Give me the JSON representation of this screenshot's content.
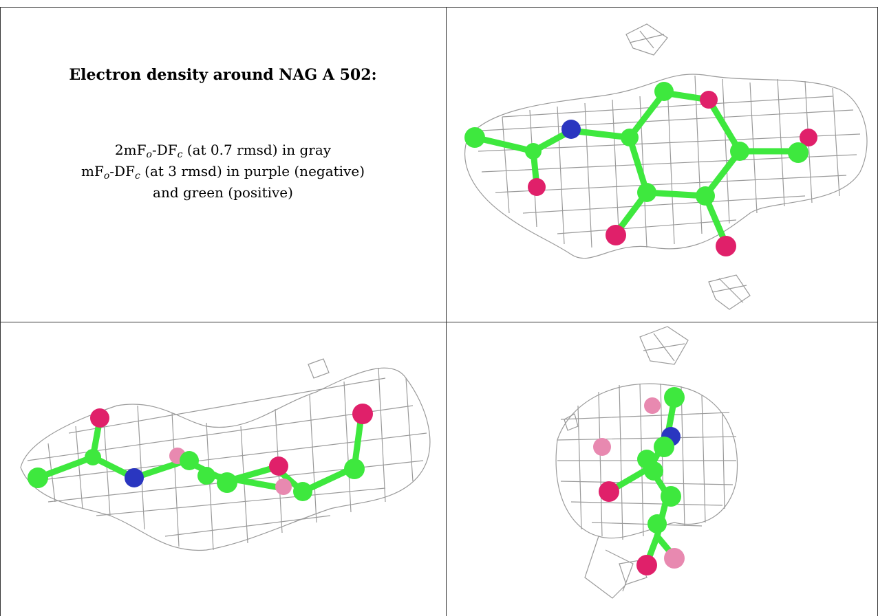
{
  "caption": {
    "title": "Electron density around NAG A 502:",
    "line1": {
      "prefix": "2mF",
      "sub_o": "o",
      "mid": "-DF",
      "sub_c": "c",
      "suffix": " (at 0.7 rmsd) in gray"
    },
    "line2": {
      "prefix": "mF",
      "sub_o": "o",
      "mid": "-DF",
      "sub_c": "c",
      "suffix": " (at 3 rmsd) in purple (negative)"
    },
    "line3": "and green (positive)"
  },
  "colors": {
    "carbon": "#3ee83e",
    "oxygen": "#e0206a",
    "nitrogen": "#2a36c0",
    "mesh": "#9a9a9a",
    "border": "#333333"
  }
}
